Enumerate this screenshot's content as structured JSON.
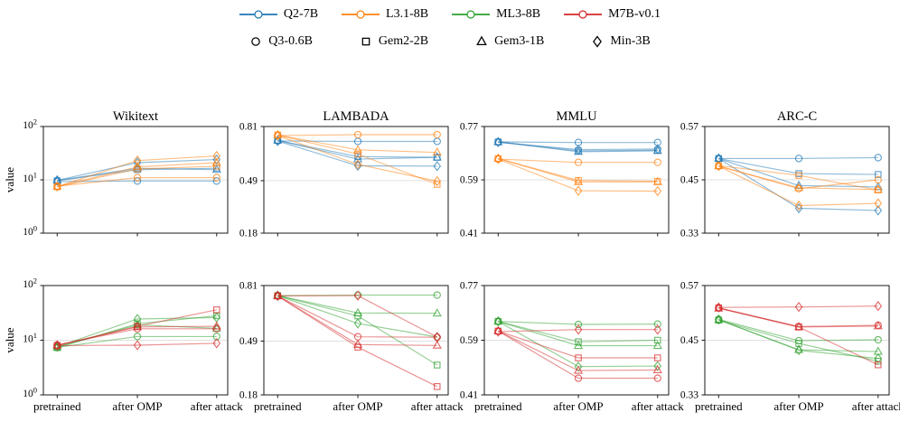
{
  "legend": {
    "models": [
      {
        "label": "Q2-7B",
        "color": "#1f77b4"
      },
      {
        "label": "L3.1-8B",
        "color": "#ff7f0e"
      },
      {
        "label": "ML3-8B",
        "color": "#2ca02c"
      },
      {
        "label": "M7B-v0.1",
        "color": "#d62728"
      }
    ],
    "small_models": [
      {
        "label": "Q3-0.6B",
        "marker": "circle"
      },
      {
        "label": "Gem2-2B",
        "marker": "square"
      },
      {
        "label": "Gem3-1B",
        "marker": "triangle"
      },
      {
        "label": "Min-3B",
        "marker": "diamond"
      }
    ]
  },
  "x_categories": [
    "pretrained",
    "after OMP",
    "after attack"
  ],
  "chart_data": [
    {
      "type": "line",
      "title": "Wikitext",
      "row": 0,
      "col": 0,
      "ylabel": "value",
      "yscale": "log",
      "ylim": [
        1,
        100
      ],
      "yticks": [
        {
          "value": 100,
          "label": "10^2"
        },
        {
          "value": 10,
          "label": "10^1"
        },
        {
          "value": 1,
          "label": "10^0"
        }
      ],
      "grid_value": 10,
      "show_xlabels": false,
      "series": [
        {
          "model": "Q2-7B",
          "small_model": "Q3-0.6B",
          "color": "#1f77b4",
          "marker": "circle",
          "values": [
            9.3,
            9.5,
            9.5
          ]
        },
        {
          "model": "Q2-7B",
          "small_model": "Gem2-2B",
          "color": "#1f77b4",
          "marker": "square",
          "values": [
            9.6,
            15.5,
            16.5
          ]
        },
        {
          "model": "Q2-7B",
          "small_model": "Gem3-1B",
          "color": "#1f77b4",
          "marker": "triangle",
          "values": [
            9.7,
            16.5,
            15.5
          ]
        },
        {
          "model": "Q2-7B",
          "small_model": "Min-3B",
          "color": "#1f77b4",
          "marker": "diamond",
          "values": [
            9.8,
            21,
            24
          ]
        },
        {
          "model": "L3.1-8B",
          "small_model": "Q3-0.6B",
          "color": "#ff7f0e",
          "marker": "circle",
          "values": [
            7.6,
            11,
            11
          ]
        },
        {
          "model": "L3.1-8B",
          "small_model": "Gem2-2B",
          "color": "#ff7f0e",
          "marker": "square",
          "values": [
            7.4,
            16,
            18
          ]
        },
        {
          "model": "L3.1-8B",
          "small_model": "Gem3-1B",
          "color": "#ff7f0e",
          "marker": "triangle",
          "values": [
            7.5,
            17.5,
            21
          ]
        },
        {
          "model": "L3.1-8B",
          "small_model": "Min-3B",
          "color": "#ff7f0e",
          "marker": "diamond",
          "values": [
            7.5,
            23,
            28
          ]
        }
      ]
    },
    {
      "type": "line",
      "title": "LAMBADA",
      "row": 0,
      "col": 1,
      "ylabel": "",
      "yscale": "linear",
      "ylim": [
        0.18,
        0.81
      ],
      "yticks": [
        {
          "value": 0.81,
          "label": "0.81"
        },
        {
          "value": 0.49,
          "label": "0.49"
        },
        {
          "value": 0.18,
          "label": "0.18"
        }
      ],
      "grid_value": 0.49,
      "show_xlabels": false,
      "series": [
        {
          "model": "Q2-7B",
          "small_model": "Q3-0.6B",
          "color": "#1f77b4",
          "marker": "circle",
          "values": [
            0.725,
            0.722,
            0.722
          ]
        },
        {
          "model": "Q2-7B",
          "small_model": "Gem2-2B",
          "color": "#1f77b4",
          "marker": "square",
          "values": [
            0.728,
            0.632,
            0.628
          ]
        },
        {
          "model": "Q2-7B",
          "small_model": "Gem3-1B",
          "color": "#1f77b4",
          "marker": "triangle",
          "values": [
            0.728,
            0.617,
            0.628
          ]
        },
        {
          "model": "Q2-7B",
          "small_model": "Min-3B",
          "color": "#1f77b4",
          "marker": "diamond",
          "values": [
            0.724,
            0.578,
            0.576
          ]
        },
        {
          "model": "L3.1-8B",
          "small_model": "Q3-0.6B",
          "color": "#ff7f0e",
          "marker": "circle",
          "values": [
            0.757,
            0.762,
            0.762
          ]
        },
        {
          "model": "L3.1-8B",
          "small_model": "Gem2-2B",
          "color": "#ff7f0e",
          "marker": "square",
          "values": [
            0.76,
            0.647,
            0.468
          ]
        },
        {
          "model": "L3.1-8B",
          "small_model": "Gem3-1B",
          "color": "#ff7f0e",
          "marker": "triangle",
          "values": [
            0.76,
            0.672,
            0.657
          ]
        },
        {
          "model": "L3.1-8B",
          "small_model": "Min-3B",
          "color": "#ff7f0e",
          "marker": "diamond",
          "values": [
            0.757,
            0.586,
            0.487
          ]
        }
      ]
    },
    {
      "type": "line",
      "title": "MMLU",
      "row": 0,
      "col": 2,
      "ylabel": "",
      "yscale": "linear",
      "ylim": [
        0.41,
        0.77
      ],
      "yticks": [
        {
          "value": 0.77,
          "label": "0.77"
        },
        {
          "value": 0.59,
          "label": "0.59"
        },
        {
          "value": 0.41,
          "label": "0.41"
        }
      ],
      "grid_value": 0.59,
      "show_xlabels": false,
      "series": [
        {
          "model": "Q2-7B",
          "small_model": "Q3-0.6B",
          "color": "#1f77b4",
          "marker": "circle",
          "values": [
            0.718,
            0.716,
            0.716
          ]
        },
        {
          "model": "Q2-7B",
          "small_model": "Gem2-2B",
          "color": "#1f77b4",
          "marker": "square",
          "values": [
            0.718,
            0.688,
            0.69
          ]
        },
        {
          "model": "Q2-7B",
          "small_model": "Gem3-1B",
          "color": "#1f77b4",
          "marker": "triangle",
          "values": [
            0.718,
            0.685,
            0.688
          ]
        },
        {
          "model": "Q2-7B",
          "small_model": "Min-3B",
          "color": "#1f77b4",
          "marker": "diamond",
          "values": [
            0.717,
            0.692,
            0.694
          ]
        },
        {
          "model": "L3.1-8B",
          "small_model": "Q3-0.6B",
          "color": "#ff7f0e",
          "marker": "circle",
          "values": [
            0.66,
            0.649,
            0.649
          ]
        },
        {
          "model": "L3.1-8B",
          "small_model": "Gem2-2B",
          "color": "#ff7f0e",
          "marker": "square",
          "values": [
            0.662,
            0.588,
            0.585
          ]
        },
        {
          "model": "L3.1-8B",
          "small_model": "Gem3-1B",
          "color": "#ff7f0e",
          "marker": "triangle",
          "values": [
            0.662,
            0.583,
            0.583
          ]
        },
        {
          "model": "L3.1-8B",
          "small_model": "Min-3B",
          "color": "#ff7f0e",
          "marker": "diamond",
          "values": [
            0.66,
            0.553,
            0.552
          ]
        }
      ]
    },
    {
      "type": "line",
      "title": "ARC-C",
      "row": 0,
      "col": 3,
      "ylabel": "",
      "yscale": "linear",
      "ylim": [
        0.33,
        0.57
      ],
      "yticks": [
        {
          "value": 0.57,
          "label": "0.57"
        },
        {
          "value": 0.45,
          "label": "0.45"
        },
        {
          "value": 0.33,
          "label": "0.33"
        }
      ],
      "grid_value": 0.45,
      "show_xlabels": false,
      "series": [
        {
          "model": "Q2-7B",
          "small_model": "Q3-0.6B",
          "color": "#1f77b4",
          "marker": "circle",
          "values": [
            0.498,
            0.498,
            0.5
          ]
        },
        {
          "model": "Q2-7B",
          "small_model": "Gem2-2B",
          "color": "#1f77b4",
          "marker": "square",
          "values": [
            0.498,
            0.464,
            0.462
          ]
        },
        {
          "model": "Q2-7B",
          "small_model": "Gem3-1B",
          "color": "#1f77b4",
          "marker": "triangle",
          "values": [
            0.498,
            0.437,
            0.434
          ]
        },
        {
          "model": "Q2-7B",
          "small_model": "Min-3B",
          "color": "#1f77b4",
          "marker": "diamond",
          "values": [
            0.498,
            0.386,
            0.381
          ]
        },
        {
          "model": "L3.1-8B",
          "small_model": "Q3-0.6B",
          "color": "#ff7f0e",
          "marker": "circle",
          "values": [
            0.481,
            0.43,
            0.45
          ]
        },
        {
          "model": "L3.1-8B",
          "small_model": "Gem2-2B",
          "color": "#ff7f0e",
          "marker": "square",
          "values": [
            0.482,
            0.46,
            0.427
          ]
        },
        {
          "model": "L3.1-8B",
          "small_model": "Gem3-1B",
          "color": "#ff7f0e",
          "marker": "triangle",
          "values": [
            0.481,
            0.432,
            0.428
          ]
        },
        {
          "model": "L3.1-8B",
          "small_model": "Min-3B",
          "color": "#ff7f0e",
          "marker": "diamond",
          "values": [
            0.481,
            0.392,
            0.397
          ]
        }
      ]
    },
    {
      "type": "line",
      "title": "",
      "row": 1,
      "col": 0,
      "ylabel": "value",
      "yscale": "log",
      "ylim": [
        1,
        100
      ],
      "yticks": [
        {
          "value": 100,
          "label": "10^2"
        },
        {
          "value": 10,
          "label": "10^1"
        },
        {
          "value": 1,
          "label": "10^0"
        }
      ],
      "grid_value": 10,
      "show_xlabels": true,
      "series": [
        {
          "model": "ML3-8B",
          "small_model": "Q3-0.6B",
          "color": "#2ca02c",
          "marker": "circle",
          "values": [
            7.4,
            11.7,
            11.7
          ]
        },
        {
          "model": "ML3-8B",
          "small_model": "Gem2-2B",
          "color": "#2ca02c",
          "marker": "square",
          "values": [
            7.3,
            20,
            28
          ]
        },
        {
          "model": "ML3-8B",
          "small_model": "Gem3-1B",
          "color": "#2ca02c",
          "marker": "triangle",
          "values": [
            7.5,
            19,
            16.5
          ]
        },
        {
          "model": "ML3-8B",
          "small_model": "Min-3B",
          "color": "#2ca02c",
          "marker": "diamond",
          "values": [
            7.6,
            24.5,
            26
          ]
        },
        {
          "model": "M7B-v0.1",
          "small_model": "Q3-0.6B",
          "color": "#d62728",
          "marker": "circle",
          "values": [
            8.2,
            16.2,
            16.2
          ]
        },
        {
          "model": "M7B-v0.1",
          "small_model": "Gem2-2B",
          "color": "#d62728",
          "marker": "square",
          "values": [
            8.0,
            18,
            36
          ]
        },
        {
          "model": "M7B-v0.1",
          "small_model": "Gem3-1B",
          "color": "#d62728",
          "marker": "triangle",
          "values": [
            8.1,
            17.5,
            18
          ]
        },
        {
          "model": "M7B-v0.1",
          "small_model": "Min-3B",
          "color": "#d62728",
          "marker": "diamond",
          "values": [
            8.0,
            8.1,
            8.8
          ]
        }
      ]
    },
    {
      "type": "line",
      "title": "",
      "row": 1,
      "col": 1,
      "ylabel": "",
      "yscale": "linear",
      "ylim": [
        0.18,
        0.81
      ],
      "yticks": [
        {
          "value": 0.81,
          "label": "0.81"
        },
        {
          "value": 0.49,
          "label": "0.49"
        },
        {
          "value": 0.18,
          "label": "0.18"
        }
      ],
      "grid_value": 0.49,
      "show_xlabels": true,
      "series": [
        {
          "model": "ML3-8B",
          "small_model": "Q3-0.6B",
          "color": "#2ca02c",
          "marker": "circle",
          "values": [
            0.752,
            0.755,
            0.755
          ]
        },
        {
          "model": "ML3-8B",
          "small_model": "Gem2-2B",
          "color": "#2ca02c",
          "marker": "square",
          "values": [
            0.752,
            0.635,
            0.352
          ]
        },
        {
          "model": "ML3-8B",
          "small_model": "Gem3-1B",
          "color": "#2ca02c",
          "marker": "triangle",
          "values": [
            0.752,
            0.652,
            0.65
          ]
        },
        {
          "model": "ML3-8B",
          "small_model": "Min-3B",
          "color": "#2ca02c",
          "marker": "diamond",
          "values": [
            0.752,
            0.592,
            0.513
          ]
        },
        {
          "model": "M7B-v0.1",
          "small_model": "Q3-0.6B",
          "color": "#d62728",
          "marker": "circle",
          "values": [
            0.75,
            0.515,
            0.512
          ]
        },
        {
          "model": "M7B-v0.1",
          "small_model": "Gem2-2B",
          "color": "#d62728",
          "marker": "square",
          "values": [
            0.75,
            0.455,
            0.228
          ]
        },
        {
          "model": "M7B-v0.1",
          "small_model": "Gem3-1B",
          "color": "#d62728",
          "marker": "triangle",
          "values": [
            0.75,
            0.47,
            0.465
          ]
        },
        {
          "model": "M7B-v0.1",
          "small_model": "Min-3B",
          "color": "#d62728",
          "marker": "diamond",
          "values": [
            0.75,
            0.752,
            0.513
          ]
        }
      ]
    },
    {
      "type": "line",
      "title": "",
      "row": 1,
      "col": 2,
      "ylabel": "",
      "yscale": "linear",
      "ylim": [
        0.41,
        0.77
      ],
      "yticks": [
        {
          "value": 0.77,
          "label": "0.77"
        },
        {
          "value": 0.59,
          "label": "0.59"
        },
        {
          "value": 0.41,
          "label": "0.41"
        }
      ],
      "grid_value": 0.59,
      "show_xlabels": true,
      "series": [
        {
          "model": "ML3-8B",
          "small_model": "Q3-0.6B",
          "color": "#2ca02c",
          "marker": "circle",
          "values": [
            0.652,
            0.642,
            0.643
          ]
        },
        {
          "model": "ML3-8B",
          "small_model": "Gem2-2B",
          "color": "#2ca02c",
          "marker": "square",
          "values": [
            0.652,
            0.585,
            0.59
          ]
        },
        {
          "model": "ML3-8B",
          "small_model": "Gem3-1B",
          "color": "#2ca02c",
          "marker": "triangle",
          "values": [
            0.652,
            0.572,
            0.572
          ]
        },
        {
          "model": "ML3-8B",
          "small_model": "Min-3B",
          "color": "#2ca02c",
          "marker": "diamond",
          "values": [
            0.652,
            0.503,
            0.505
          ]
        },
        {
          "model": "M7B-v0.1",
          "small_model": "Q3-0.6B",
          "color": "#d62728",
          "marker": "circle",
          "values": [
            0.62,
            0.465,
            0.465
          ]
        },
        {
          "model": "M7B-v0.1",
          "small_model": "Gem2-2B",
          "color": "#d62728",
          "marker": "square",
          "values": [
            0.62,
            0.532,
            0.532
          ]
        },
        {
          "model": "M7B-v0.1",
          "small_model": "Gem3-1B",
          "color": "#d62728",
          "marker": "triangle",
          "values": [
            0.62,
            0.49,
            0.492
          ]
        },
        {
          "model": "M7B-v0.1",
          "small_model": "Min-3B",
          "color": "#d62728",
          "marker": "diamond",
          "values": [
            0.618,
            0.625,
            0.625
          ]
        }
      ]
    },
    {
      "type": "line",
      "title": "",
      "row": 1,
      "col": 3,
      "ylabel": "",
      "yscale": "linear",
      "ylim": [
        0.33,
        0.57
      ],
      "yticks": [
        {
          "value": 0.57,
          "label": "0.57"
        },
        {
          "value": 0.45,
          "label": "0.45"
        },
        {
          "value": 0.33,
          "label": "0.33"
        }
      ],
      "grid_value": 0.45,
      "show_xlabels": true,
      "series": [
        {
          "model": "ML3-8B",
          "small_model": "Q3-0.6B",
          "color": "#2ca02c",
          "marker": "circle",
          "values": [
            0.496,
            0.449,
            0.451
          ]
        },
        {
          "model": "ML3-8B",
          "small_model": "Gem2-2B",
          "color": "#2ca02c",
          "marker": "square",
          "values": [
            0.494,
            0.443,
            0.404
          ]
        },
        {
          "model": "ML3-8B",
          "small_model": "Gem3-1B",
          "color": "#2ca02c",
          "marker": "triangle",
          "values": [
            0.495,
            0.429,
            0.425
          ]
        },
        {
          "model": "ML3-8B",
          "small_model": "Min-3B",
          "color": "#2ca02c",
          "marker": "diamond",
          "values": [
            0.495,
            0.428,
            0.41
          ]
        },
        {
          "model": "M7B-v0.1",
          "small_model": "Q3-0.6B",
          "color": "#d62728",
          "marker": "circle",
          "values": [
            0.521,
            0.48,
            0.483
          ]
        },
        {
          "model": "M7B-v0.1",
          "small_model": "Gem2-2B",
          "color": "#d62728",
          "marker": "square",
          "values": [
            0.521,
            0.479,
            0.396
          ]
        },
        {
          "model": "M7B-v0.1",
          "small_model": "Gem3-1B",
          "color": "#d62728",
          "marker": "triangle",
          "values": [
            0.52,
            0.479,
            0.481
          ]
        },
        {
          "model": "M7B-v0.1",
          "small_model": "Min-3B",
          "color": "#d62728",
          "marker": "diamond",
          "values": [
            0.522,
            0.523,
            0.525
          ]
        }
      ]
    }
  ]
}
